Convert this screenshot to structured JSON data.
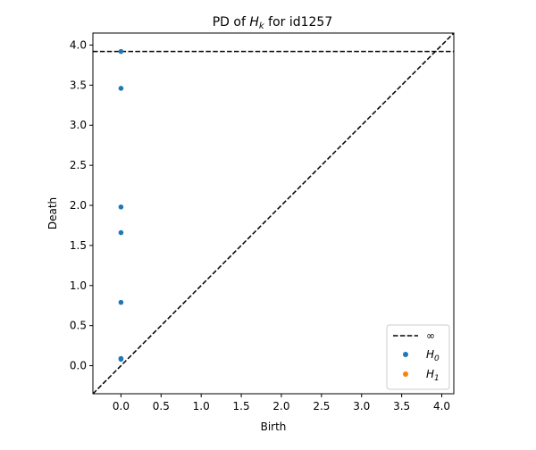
{
  "chart_data": {
    "type": "scatter",
    "title_prefix": "PD of ",
    "title_symbol": "H",
    "title_sub": "k",
    "title_suffix": " for id1257",
    "xlabel": "Birth",
    "ylabel": "Death",
    "xlim": [
      -0.35,
      4.15
    ],
    "ylim": [
      -0.35,
      4.15
    ],
    "xticks": [
      0.0,
      0.5,
      1.0,
      1.5,
      2.0,
      2.5,
      3.0,
      3.5,
      4.0
    ],
    "yticks": [
      0.0,
      0.5,
      1.0,
      1.5,
      2.0,
      2.5,
      3.0,
      3.5,
      4.0
    ],
    "tick_labels": [
      "0.0",
      "0.5",
      "1.0",
      "1.5",
      "2.0",
      "2.5",
      "3.0",
      "3.5",
      "4.0"
    ],
    "infinity_level": 3.92,
    "diagonal": true,
    "legend_position": "lower-right",
    "legend": {
      "infinity_label": "∞",
      "series_symbol": "H",
      "h0_sub": "0",
      "h1_sub": "1"
    },
    "series": [
      {
        "name": "H0",
        "color": "#1f77b4",
        "points": [
          {
            "x": 0.0,
            "y": 0.08
          },
          {
            "x": 0.0,
            "y": 0.09
          },
          {
            "x": 0.0,
            "y": 0.79
          },
          {
            "x": 0.0,
            "y": 1.66
          },
          {
            "x": 0.0,
            "y": 1.98
          },
          {
            "x": 0.0,
            "y": 3.46
          },
          {
            "x": 0.0,
            "y": 3.92
          }
        ]
      },
      {
        "name": "H1",
        "color": "#ff7f0e",
        "points": []
      }
    ]
  }
}
